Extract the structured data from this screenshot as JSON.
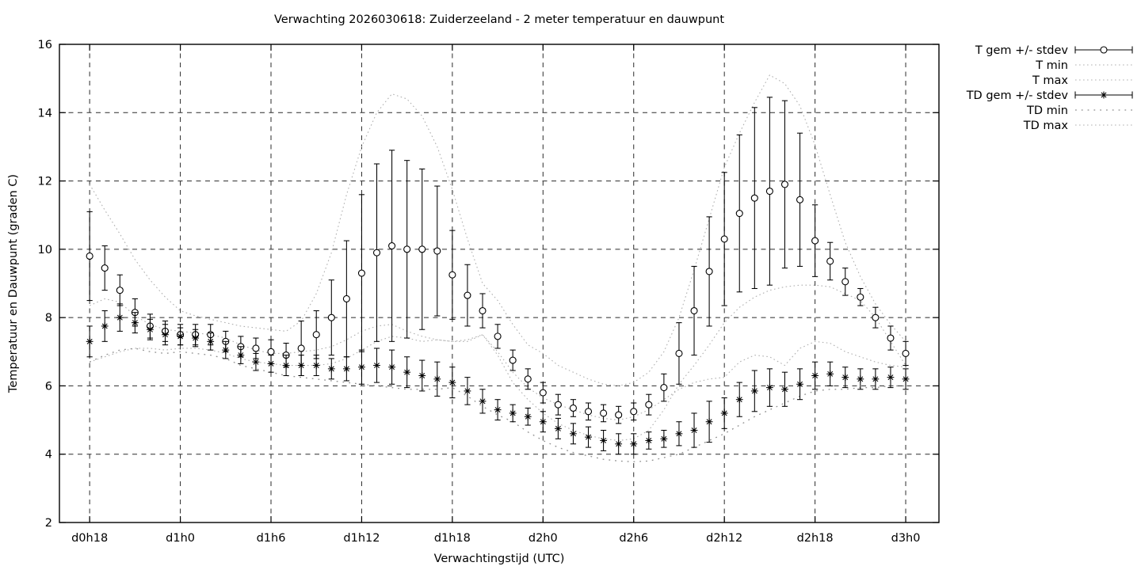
{
  "title": "Verwachting 2026030618: Zuiderzeeland - 2 meter temperatuur en dauwpunt",
  "chart_data": {
    "type": "line",
    "subtype": "errorbars-with-minmax-envelopes",
    "title": "Verwachting 2026030618: Zuiderzeeland - 2 meter temperatuur en dauwpunt",
    "xlabel": "Verwachtingstijd (UTC)",
    "ylabel": "Temperatuur en Dauwpunt (graden C)",
    "ylim": [
      2,
      16
    ],
    "yticks": [
      2,
      4,
      6,
      8,
      10,
      12,
      14,
      16
    ],
    "xlim_hours": [
      16,
      74.2
    ],
    "xticks": [
      {
        "hour": 18,
        "label": "d0h18"
      },
      {
        "hour": 24,
        "label": "d1h0"
      },
      {
        "hour": 30,
        "label": "d1h6"
      },
      {
        "hour": 36,
        "label": "d1h12"
      },
      {
        "hour": 42,
        "label": "d1h18"
      },
      {
        "hour": 48,
        "label": "d2h0"
      },
      {
        "hour": 54,
        "label": "d2h6"
      },
      {
        "hour": 60,
        "label": "d2h12"
      },
      {
        "hour": 66,
        "label": "d2h18"
      },
      {
        "hour": 72,
        "label": "d3h0"
      }
    ],
    "start_hour": 18,
    "hour_step": 1,
    "grid": true,
    "legend_position": "outside-right-top",
    "colors": {
      "foreground": "#000000",
      "grid": "#2b2b2b",
      "envelope": "#b0b0b0",
      "envelope_sparse": "#8f8f8f",
      "background": "#ffffff"
    },
    "series": [
      {
        "name": "T gem +/- stdev",
        "type": "errorbars",
        "marker": "circle",
        "mean": [
          9.8,
          9.45,
          8.8,
          8.15,
          7.75,
          7.6,
          7.5,
          7.5,
          7.5,
          7.3,
          7.15,
          7.1,
          7.0,
          6.9,
          7.1,
          7.5,
          8.0,
          8.55,
          9.3,
          9.9,
          10.1,
          10.0,
          10.0,
          9.95,
          9.25,
          8.65,
          8.2,
          7.45,
          6.75,
          6.2,
          5.8,
          5.45,
          5.35,
          5.25,
          5.2,
          5.15,
          5.25,
          5.45,
          5.95,
          6.95,
          8.2,
          9.35,
          10.3,
          11.05,
          11.5,
          11.7,
          11.9,
          11.45,
          10.25,
          9.65,
          9.05,
          8.6,
          8.0,
          7.4,
          6.95
        ],
        "stdev": [
          1.3,
          0.65,
          0.45,
          0.4,
          0.35,
          0.3,
          0.3,
          0.3,
          0.3,
          0.3,
          0.3,
          0.3,
          0.35,
          0.35,
          0.8,
          0.7,
          1.1,
          1.7,
          2.3,
          2.6,
          2.8,
          2.6,
          2.35,
          1.9,
          1.3,
          0.9,
          0.5,
          0.35,
          0.3,
          0.3,
          0.3,
          0.3,
          0.25,
          0.25,
          0.25,
          0.25,
          0.25,
          0.3,
          0.4,
          0.9,
          1.3,
          1.6,
          1.95,
          2.3,
          2.65,
          2.75,
          2.45,
          1.95,
          1.05,
          0.55,
          0.4,
          0.25,
          0.3,
          0.35,
          0.35
        ]
      },
      {
        "name": "T min",
        "type": "dotted",
        "values": [
          6.7,
          6.85,
          7.0,
          7.1,
          7.1,
          7.05,
          7.1,
          7.1,
          7.05,
          6.95,
          6.8,
          6.7,
          6.65,
          6.6,
          6.6,
          6.6,
          6.65,
          6.8,
          7.05,
          7.3,
          7.45,
          7.4,
          7.3,
          7.35,
          7.3,
          7.3,
          7.5,
          6.9,
          6.1,
          5.6,
          5.2,
          4.9,
          4.7,
          4.55,
          4.45,
          4.4,
          4.45,
          4.7,
          5.3,
          6.05,
          6.6,
          7.2,
          7.85,
          8.3,
          8.6,
          8.8,
          8.9,
          8.95,
          8.95,
          8.9,
          8.7,
          8.5,
          8.0,
          7.3,
          6.6
        ]
      },
      {
        "name": "T max",
        "type": "dotted",
        "values": [
          11.9,
          11.15,
          10.45,
          9.7,
          9.1,
          8.6,
          8.2,
          8.05,
          7.95,
          7.85,
          7.75,
          7.7,
          7.65,
          7.6,
          7.9,
          8.7,
          9.9,
          11.6,
          13.0,
          14.0,
          14.55,
          14.4,
          13.9,
          13.0,
          11.75,
          10.3,
          9.0,
          8.5,
          7.8,
          7.2,
          6.95,
          6.6,
          6.4,
          6.2,
          6.05,
          6.0,
          6.1,
          6.4,
          7.0,
          8.0,
          9.4,
          10.9,
          12.4,
          13.4,
          14.3,
          15.1,
          14.85,
          14.2,
          13.05,
          11.6,
          10.2,
          9.2,
          8.4,
          7.8,
          7.3
        ]
      },
      {
        "name": "TD gem +/- stdev",
        "type": "errorbars",
        "marker": "asterisk",
        "mean": [
          7.3,
          7.75,
          8.0,
          7.85,
          7.65,
          7.5,
          7.45,
          7.4,
          7.3,
          7.05,
          6.9,
          6.7,
          6.65,
          6.6,
          6.6,
          6.6,
          6.5,
          6.5,
          6.55,
          6.6,
          6.55,
          6.4,
          6.3,
          6.2,
          6.1,
          5.85,
          5.55,
          5.3,
          5.2,
          5.1,
          4.95,
          4.75,
          4.6,
          4.5,
          4.4,
          4.3,
          4.3,
          4.4,
          4.45,
          4.6,
          4.7,
          4.95,
          5.2,
          5.6,
          5.85,
          5.95,
          5.9,
          6.05,
          6.3,
          6.35,
          6.25,
          6.2,
          6.2,
          6.25,
          6.2
        ],
        "stdev": [
          0.45,
          0.45,
          0.4,
          0.3,
          0.3,
          0.3,
          0.25,
          0.25,
          0.25,
          0.25,
          0.25,
          0.25,
          0.25,
          0.3,
          0.3,
          0.3,
          0.3,
          0.35,
          0.5,
          0.5,
          0.5,
          0.45,
          0.45,
          0.5,
          0.45,
          0.4,
          0.35,
          0.3,
          0.25,
          0.25,
          0.3,
          0.3,
          0.3,
          0.3,
          0.3,
          0.3,
          0.3,
          0.25,
          0.25,
          0.35,
          0.5,
          0.6,
          0.45,
          0.5,
          0.6,
          0.55,
          0.5,
          0.45,
          0.4,
          0.35,
          0.3,
          0.3,
          0.3,
          0.3,
          0.3
        ]
      },
      {
        "name": "TD min",
        "type": "dotted-sparse",
        "values": [
          6.7,
          6.9,
          7.05,
          7.1,
          7.0,
          6.95,
          7.0,
          6.95,
          6.9,
          6.8,
          6.6,
          6.5,
          6.4,
          6.3,
          6.25,
          6.2,
          6.15,
          6.1,
          6.05,
          6.0,
          5.95,
          5.9,
          5.9,
          5.9,
          5.95,
          5.7,
          5.4,
          5.15,
          4.95,
          4.65,
          4.4,
          4.2,
          4.05,
          3.95,
          3.85,
          3.8,
          3.78,
          3.8,
          3.9,
          4.0,
          4.2,
          4.4,
          4.6,
          4.85,
          5.1,
          5.3,
          5.5,
          5.7,
          5.85,
          5.9,
          5.9,
          5.95,
          5.95,
          6.0,
          6.0
        ]
      },
      {
        "name": "TD max",
        "type": "dotted",
        "values": [
          8.35,
          8.55,
          8.45,
          8.05,
          7.8,
          7.65,
          7.6,
          7.55,
          7.5,
          7.4,
          7.2,
          7.05,
          6.95,
          6.95,
          7.0,
          7.05,
          7.15,
          7.35,
          7.6,
          7.75,
          7.8,
          7.6,
          7.45,
          7.35,
          7.3,
          7.35,
          7.5,
          7.0,
          6.4,
          5.95,
          5.65,
          5.45,
          5.3,
          5.15,
          5.05,
          5.0,
          5.1,
          5.3,
          5.6,
          5.9,
          6.1,
          6.2,
          6.25,
          6.7,
          6.9,
          6.85,
          6.6,
          7.1,
          7.3,
          7.25,
          7.0,
          6.85,
          6.7,
          6.6,
          6.55
        ]
      }
    ]
  }
}
